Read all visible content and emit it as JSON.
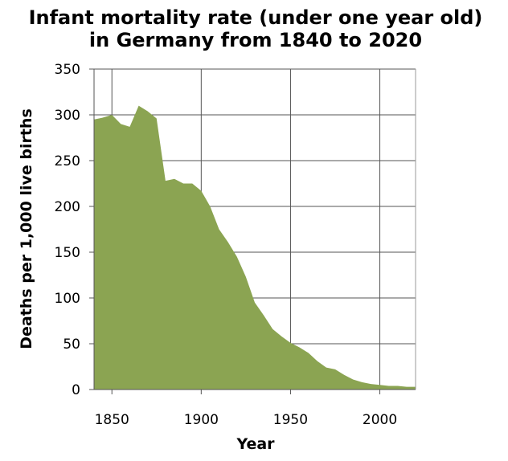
{
  "chart_data": {
    "type": "area",
    "title_lines": [
      "Infant mortality rate (under one year old)",
      "in Germany from 1840 to 2020"
    ],
    "xlabel": "Year",
    "ylabel": "Deaths per 1,000 live births",
    "xlim": [
      1840,
      2020
    ],
    "ylim": [
      0,
      350
    ],
    "x_ticks": [
      1850,
      1900,
      1950,
      2000
    ],
    "y_ticks": [
      0,
      50,
      100,
      150,
      200,
      250,
      300,
      350
    ],
    "grid": true,
    "fill_color": "#8ba452",
    "x": [
      1840,
      1845,
      1850,
      1855,
      1860,
      1865,
      1870,
      1875,
      1880,
      1885,
      1890,
      1895,
      1900,
      1905,
      1910,
      1915,
      1920,
      1925,
      1930,
      1935,
      1940,
      1945,
      1950,
      1955,
      1960,
      1965,
      1970,
      1975,
      1980,
      1985,
      1990,
      1995,
      2000,
      2005,
      2010,
      2015,
      2020
    ],
    "values": [
      295,
      297,
      300,
      290,
      287,
      310,
      304,
      296,
      228,
      230,
      225,
      225,
      217,
      200,
      175,
      161,
      145,
      123,
      95,
      81,
      66,
      58,
      51,
      46,
      40,
      31,
      24,
      22,
      16,
      11,
      8,
      6,
      5,
      4,
      4,
      3,
      3
    ]
  }
}
